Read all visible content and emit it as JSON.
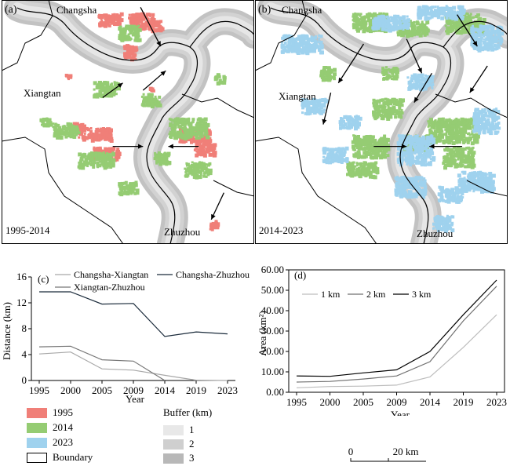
{
  "maps": [
    {
      "panel_label": "(a)",
      "period_label": "1995-2014",
      "city_labels": [
        "Changsha",
        "Xiangtan",
        "Zhuzhou"
      ],
      "patches": [
        {
          "class": "1995",
          "color": "#f07f78",
          "clusters": [
            [
              0.38,
              0.05,
              0.09,
              0.05
            ],
            [
              0.5,
              0.05,
              0.1,
              0.06
            ],
            [
              0.48,
              0.18,
              0.05,
              0.06
            ],
            [
              0.58,
              0.08,
              0.05,
              0.04
            ],
            [
              0.3,
              0.52,
              0.13,
              0.05
            ],
            [
              0.36,
              0.6,
              0.1,
              0.05
            ],
            [
              0.28,
              0.5,
              0.04,
              0.04
            ],
            [
              0.7,
              0.52,
              0.12,
              0.06
            ],
            [
              0.76,
              0.58,
              0.08,
              0.05
            ],
            [
              0.82,
              0.9,
              0.03,
              0.04
            ],
            [
              0.58,
              0.35,
              0.02,
              0.02
            ],
            [
              0.25,
              0.3,
              0.02,
              0.02
            ]
          ]
        },
        {
          "class": "2014",
          "color": "#95cc73",
          "clusters": [
            [
              0.36,
              0.33,
              0.1,
              0.06
            ],
            [
              0.2,
              0.5,
              0.1,
              0.06
            ],
            [
              0.3,
              0.62,
              0.14,
              0.06
            ],
            [
              0.46,
              0.74,
              0.07,
              0.05
            ],
            [
              0.55,
              0.38,
              0.07,
              0.05
            ],
            [
              0.66,
              0.48,
              0.15,
              0.08
            ],
            [
              0.72,
              0.66,
              0.1,
              0.06
            ],
            [
              0.6,
              0.62,
              0.06,
              0.05
            ],
            [
              0.46,
              0.1,
              0.08,
              0.06
            ],
            [
              0.15,
              0.48,
              0.04,
              0.03
            ],
            [
              0.84,
              0.3,
              0.04,
              0.04
            ]
          ]
        }
      ],
      "arrows": [
        [
          0.55,
          0.03,
          0.63,
          0.19
        ],
        [
          0.4,
          0.4,
          0.48,
          0.34
        ],
        [
          0.56,
          0.37,
          0.65,
          0.29
        ],
        [
          0.44,
          0.6,
          0.56,
          0.6
        ],
        [
          0.78,
          0.6,
          0.66,
          0.6
        ],
        [
          0.88,
          0.79,
          0.83,
          0.9
        ]
      ]
    },
    {
      "panel_label": "(b)",
      "period_label": "2014-2023",
      "city_labels": [
        "Changsha",
        "Xiangtan",
        "Zhuzhou"
      ],
      "patches": [
        {
          "class": "2014",
          "color": "#95cc73",
          "clusters": [
            [
              0.38,
              0.05,
              0.14,
              0.07
            ],
            [
              0.75,
              0.05,
              0.15,
              0.08
            ],
            [
              0.56,
              0.08,
              0.12,
              0.06
            ],
            [
              0.46,
              0.4,
              0.12,
              0.08
            ],
            [
              0.38,
              0.55,
              0.14,
              0.09
            ],
            [
              0.36,
              0.66,
              0.12,
              0.06
            ],
            [
              0.58,
              0.55,
              0.1,
              0.06
            ],
            [
              0.68,
              0.48,
              0.2,
              0.1
            ],
            [
              0.74,
              0.6,
              0.12,
              0.08
            ],
            [
              0.25,
              0.27,
              0.06,
              0.05
            ],
            [
              0.5,
              0.27,
              0.06,
              0.05
            ]
          ]
        },
        {
          "class": "2023",
          "color": "#9fd2ee",
          "clusters": [
            [
              0.1,
              0.14,
              0.16,
              0.07
            ],
            [
              0.46,
              0.06,
              0.14,
              0.06
            ],
            [
              0.64,
              0.02,
              0.18,
              0.05
            ],
            [
              0.85,
              0.1,
              0.12,
              0.1
            ],
            [
              0.18,
              0.4,
              0.1,
              0.06
            ],
            [
              0.6,
              0.3,
              0.1,
              0.06
            ],
            [
              0.56,
              0.55,
              0.14,
              0.12
            ],
            [
              0.26,
              0.6,
              0.1,
              0.06
            ],
            [
              0.55,
              0.72,
              0.12,
              0.08
            ],
            [
              0.72,
              0.76,
              0.1,
              0.06
            ],
            [
              0.8,
              0.7,
              0.14,
              0.08
            ],
            [
              0.86,
              0.44,
              0.1,
              0.1
            ],
            [
              0.33,
              0.47,
              0.08,
              0.05
            ],
            [
              0.7,
              0.88,
              0.08,
              0.06
            ]
          ]
        }
      ],
      "arrows": [
        [
          0.43,
          0.18,
          0.33,
          0.34
        ],
        [
          0.3,
          0.38,
          0.27,
          0.51
        ],
        [
          0.6,
          0.16,
          0.66,
          0.3
        ],
        [
          0.7,
          0.3,
          0.63,
          0.42
        ],
        [
          0.8,
          0.06,
          0.88,
          0.19
        ],
        [
          0.92,
          0.27,
          0.85,
          0.38
        ],
        [
          0.47,
          0.6,
          0.6,
          0.6
        ],
        [
          0.82,
          0.6,
          0.69,
          0.6
        ]
      ]
    }
  ],
  "chart_data": [
    {
      "type": "line",
      "panel_label": "(c)",
      "x": [
        1995,
        2000,
        2005,
        2009,
        2014,
        2019,
        2023
      ],
      "xlabel": "Year",
      "ylabel": "Distance (km)",
      "ylim": [
        0,
        16
      ],
      "yticks": [
        0,
        4,
        8,
        12,
        16
      ],
      "series": [
        {
          "name": "Changsha-Xiangtan",
          "color": "#a8a8a8",
          "values": [
            4.1,
            4.4,
            1.8,
            1.6,
            0.8,
            0.05,
            0.0
          ]
        },
        {
          "name": "Xiangtan-Zhuzhou",
          "color": "#777777",
          "values": [
            5.2,
            5.3,
            3.2,
            3.0,
            0.0,
            null,
            null
          ]
        },
        {
          "name": "Changsha-Zhuzhou",
          "color": "#1a2a3a",
          "values": [
            13.7,
            13.7,
            11.8,
            11.9,
            6.8,
            7.5,
            7.2
          ]
        }
      ]
    },
    {
      "type": "line",
      "panel_label": "(d)",
      "x": [
        1995,
        2000,
        2005,
        2009,
        2014,
        2019,
        2023
      ],
      "xlabel": "Year",
      "ylabel": "Area (km²)",
      "ylim": [
        0,
        60
      ],
      "yticks": [
        "0.00",
        "10.00",
        "20.00",
        "30.00",
        "40.00",
        "50.00",
        "60.00"
      ],
      "series": [
        {
          "name": "1 km",
          "color": "#bdbdbd",
          "values": [
            2.2,
            2.8,
            3.0,
            3.5,
            7.5,
            22.0,
            38.0
          ]
        },
        {
          "name": "2 km",
          "color": "#707070",
          "values": [
            5.0,
            5.3,
            6.5,
            8.0,
            15.0,
            35.0,
            52.0
          ]
        },
        {
          "name": "3 km",
          "color": "#000000",
          "values": [
            8.0,
            7.8,
            9.5,
            11.0,
            20.0,
            38.0,
            55.0
          ]
        }
      ]
    }
  ],
  "legend": {
    "landuse": [
      {
        "label": "1995",
        "color": "#f07f78"
      },
      {
        "label": "2014",
        "color": "#95cc73"
      },
      {
        "label": "2023",
        "color": "#9fd2ee"
      },
      {
        "label": "Boundary",
        "color": "#ffffff"
      }
    ],
    "buffer_title": "Buffer (km)",
    "buffer": [
      {
        "label": "1",
        "color": "#e8e8e8"
      },
      {
        "label": "2",
        "color": "#cfcfcf"
      },
      {
        "label": "3",
        "color": "#b8b8b8"
      }
    ]
  },
  "scalebar": {
    "start": "0",
    "end": "20 km"
  }
}
